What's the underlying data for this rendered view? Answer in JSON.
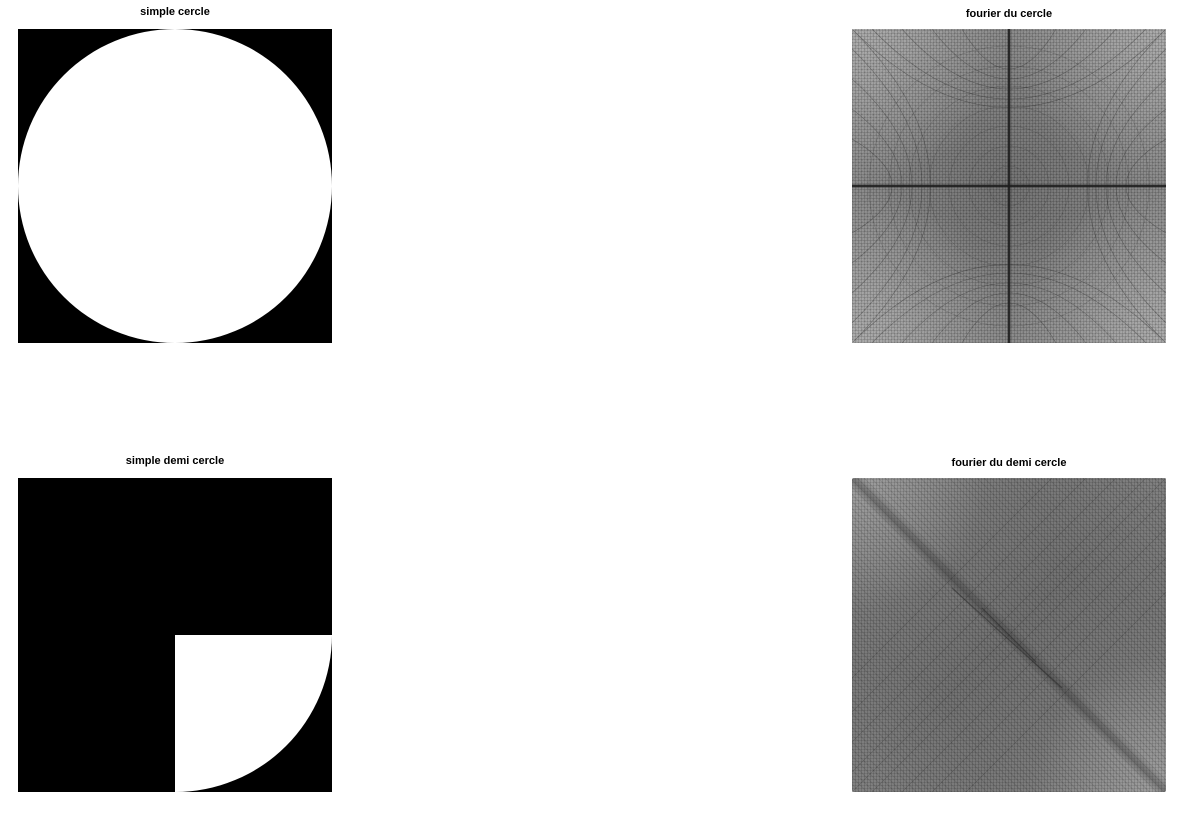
{
  "figure": {
    "panels": [
      {
        "id": "top-left",
        "title": "simple cercle",
        "image": "white disk on black"
      },
      {
        "id": "top-right",
        "title": "fourier du cercle",
        "image": "grayscale fourier magnitude spectrum"
      },
      {
        "id": "bottom-left",
        "title": "simple demi cercle",
        "image": "white quarter disk on black"
      },
      {
        "id": "bottom-right",
        "title": "fourier du demi cercle",
        "image": "grayscale fourier magnitude spectrum"
      }
    ]
  },
  "colors": {
    "background": "#ffffff",
    "shape_fill": "#ffffff",
    "image_background": "#000000",
    "spectrum_gray": "#7a7a7a"
  }
}
